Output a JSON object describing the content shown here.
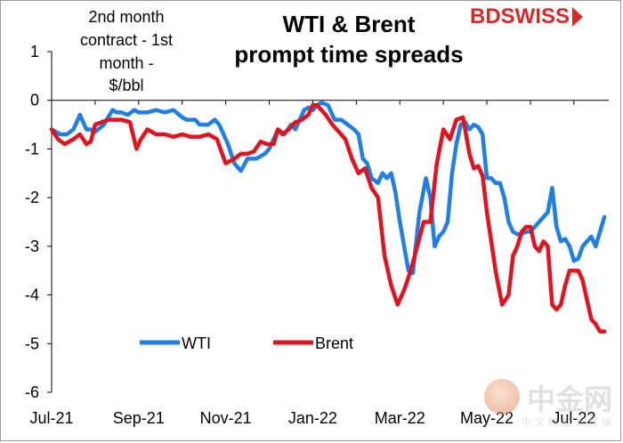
{
  "brand": {
    "name": "BDSWISS",
    "logo_color": "#d42a2a"
  },
  "watermark": {
    "name": "中金网",
    "subtitle": "中文财经新媒体"
  },
  "colors": {
    "wti": "#1f7fe6",
    "brent": "#e3121f",
    "axis": "#000000"
  },
  "chart_data": {
    "type": "line",
    "title_lines": [
      "WTI & Brent",
      "prompt time spreads"
    ],
    "ylabel_lines": [
      "2nd month",
      "contract - 1st",
      "month -",
      "$/bbl"
    ],
    "xlabel": "",
    "ylim": [
      -6,
      1
    ],
    "yticks": [
      1,
      0,
      -1,
      -2,
      -3,
      -4,
      -5,
      -6
    ],
    "ytick_labels": [
      "1",
      "0",
      "-1",
      "-2",
      "-3",
      "-4",
      "-5",
      "-6"
    ],
    "xlim": [
      0,
      12.8
    ],
    "xticks": [
      0,
      2,
      4,
      6,
      8,
      10,
      12
    ],
    "xtick_labels": [
      "Jul-21",
      "Sep-21",
      "Nov-21",
      "Jan-22",
      "Mar-22",
      "May-22",
      "Jul-22"
    ],
    "grid": false,
    "legend_position": "lower-left",
    "series": [
      {
        "name": "WTI",
        "color": "#1f7fe6",
        "x": [
          0.0,
          0.2,
          0.35,
          0.5,
          0.65,
          0.8,
          0.9,
          1.0,
          1.2,
          1.4,
          1.5,
          1.6,
          1.75,
          1.9,
          2.0,
          2.2,
          2.4,
          2.6,
          2.8,
          3.0,
          3.1,
          3.2,
          3.3,
          3.4,
          3.6,
          3.75,
          3.85,
          3.95,
          4.05,
          4.2,
          4.35,
          4.5,
          4.6,
          4.7,
          4.8,
          4.9,
          5.0,
          5.2,
          5.35,
          5.5,
          5.6,
          5.7,
          5.8,
          5.9,
          6.0,
          6.1,
          6.2,
          6.35,
          6.5,
          6.65,
          6.8,
          6.95,
          7.05,
          7.15,
          7.25,
          7.35,
          7.5,
          7.6,
          7.7,
          7.8,
          7.9,
          8.0,
          8.1,
          8.2,
          8.3,
          8.45,
          8.6,
          8.7,
          8.8,
          8.9,
          9.0,
          9.1,
          9.2,
          9.3,
          9.4,
          9.5,
          9.6,
          9.7,
          9.8,
          9.9,
          10.0,
          10.1,
          10.2,
          10.3,
          10.4,
          10.5,
          10.6,
          10.7,
          10.8,
          10.9,
          11.0,
          11.1,
          11.2,
          11.3,
          11.4,
          11.5,
          11.6,
          11.7,
          11.8,
          11.9,
          12.0,
          12.1,
          12.2,
          12.3,
          12.4,
          12.5,
          12.6,
          12.7
        ],
        "values": [
          -0.6,
          -0.7,
          -0.7,
          -0.6,
          -0.3,
          -0.6,
          -0.6,
          -0.65,
          -0.5,
          -0.2,
          -0.25,
          -0.25,
          -0.3,
          -0.2,
          -0.25,
          -0.25,
          -0.2,
          -0.25,
          -0.2,
          -0.35,
          -0.4,
          -0.4,
          -0.4,
          -0.5,
          -0.5,
          -0.4,
          -0.5,
          -0.7,
          -0.9,
          -1.3,
          -1.45,
          -1.2,
          -1.2,
          -1.2,
          -1.15,
          -1.1,
          -1.0,
          -0.6,
          -0.7,
          -0.5,
          -0.6,
          -0.4,
          -0.2,
          -0.15,
          -0.2,
          -0.1,
          -0.05,
          -0.1,
          -0.4,
          -0.4,
          -0.5,
          -0.6,
          -0.7,
          -1.2,
          -1.3,
          -1.6,
          -1.7,
          -1.5,
          -1.6,
          -1.5,
          -1.9,
          -2.5,
          -3.0,
          -3.5,
          -3.55,
          -2.3,
          -1.6,
          -2.0,
          -3.0,
          -2.8,
          -2.7,
          -2.5,
          -1.5,
          -0.9,
          -0.5,
          -0.45,
          -0.6,
          -0.5,
          -0.55,
          -0.7,
          -1.6,
          -1.6,
          -1.7,
          -1.7,
          -2.0,
          -2.5,
          -2.7,
          -2.75,
          -2.75,
          -2.7,
          -2.7,
          -2.6,
          -2.5,
          -2.4,
          -2.3,
          -1.8,
          -2.6,
          -2.9,
          -2.85,
          -3.0,
          -3.3,
          -3.25,
          -3.0,
          -2.9,
          -2.8,
          -3.0,
          -2.7,
          -2.4
        ]
      },
      {
        "name": "Brent",
        "color": "#e3121f",
        "x": [
          0.0,
          0.15,
          0.3,
          0.5,
          0.65,
          0.8,
          0.9,
          1.0,
          1.15,
          1.3,
          1.45,
          1.6,
          1.8,
          1.95,
          2.05,
          2.2,
          2.4,
          2.6,
          2.8,
          3.0,
          3.2,
          3.4,
          3.6,
          3.8,
          4.0,
          4.2,
          4.35,
          4.5,
          4.65,
          4.8,
          4.95,
          5.1,
          5.2,
          5.3,
          5.45,
          5.6,
          5.75,
          5.9,
          6.0,
          6.1,
          6.2,
          6.3,
          6.45,
          6.6,
          6.75,
          6.9,
          7.05,
          7.2,
          7.35,
          7.5,
          7.65,
          7.8,
          7.95,
          8.1,
          8.25,
          8.4,
          8.55,
          8.7,
          8.85,
          9.0,
          9.15,
          9.3,
          9.45,
          9.6,
          9.7,
          9.8,
          9.9,
          10.0,
          10.1,
          10.2,
          10.35,
          10.5,
          10.6,
          10.7,
          10.8,
          10.9,
          11.0,
          11.1,
          11.2,
          11.3,
          11.4,
          11.5,
          11.6,
          11.7,
          11.8,
          11.9,
          12.0,
          12.1,
          12.2,
          12.3,
          12.4,
          12.5,
          12.6,
          12.7
        ],
        "values": [
          -0.6,
          -0.8,
          -0.9,
          -0.8,
          -0.7,
          -0.9,
          -0.85,
          -0.5,
          -0.45,
          -0.4,
          -0.4,
          -0.4,
          -0.45,
          -1.0,
          -0.8,
          -0.6,
          -0.7,
          -0.7,
          -0.75,
          -0.7,
          -0.75,
          -0.75,
          -0.7,
          -0.8,
          -1.3,
          -1.2,
          -1.1,
          -1.1,
          -1.05,
          -0.85,
          -0.9,
          -0.9,
          -0.6,
          -0.7,
          -0.6,
          -0.45,
          -0.4,
          -0.3,
          -0.1,
          -0.1,
          -0.2,
          -0.3,
          -0.5,
          -0.65,
          -0.8,
          -1.2,
          -1.5,
          -1.4,
          -1.8,
          -2.0,
          -3.2,
          -3.8,
          -4.2,
          -3.9,
          -3.5,
          -3.0,
          -2.5,
          -2.5,
          -1.3,
          -0.6,
          -0.8,
          -0.4,
          -0.35,
          -1.1,
          -1.4,
          -1.35,
          -1.55,
          -2.3,
          -2.9,
          -3.5,
          -4.2,
          -4.0,
          -3.2,
          -3.0,
          -2.7,
          -2.6,
          -2.6,
          -3.0,
          -3.1,
          -2.9,
          -3.0,
          -4.2,
          -4.3,
          -4.2,
          -3.8,
          -3.5,
          -3.5,
          -3.5,
          -3.7,
          -4.1,
          -4.5,
          -4.6,
          -4.75,
          -4.75
        ]
      }
    ]
  }
}
